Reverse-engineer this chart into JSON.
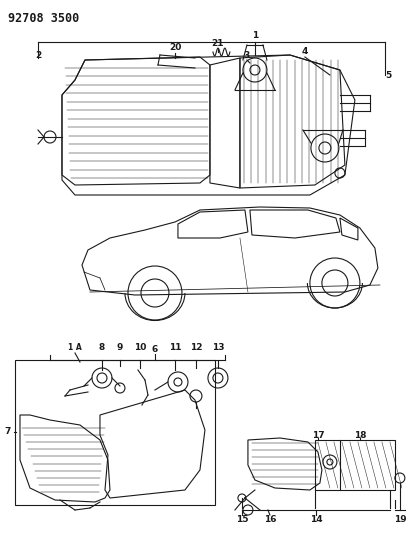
{
  "title": "92708 3500",
  "bg_color": "#ffffff",
  "line_color": "#1a1a1a",
  "fig_width": 4.08,
  "fig_height": 5.33,
  "dpi": 100
}
